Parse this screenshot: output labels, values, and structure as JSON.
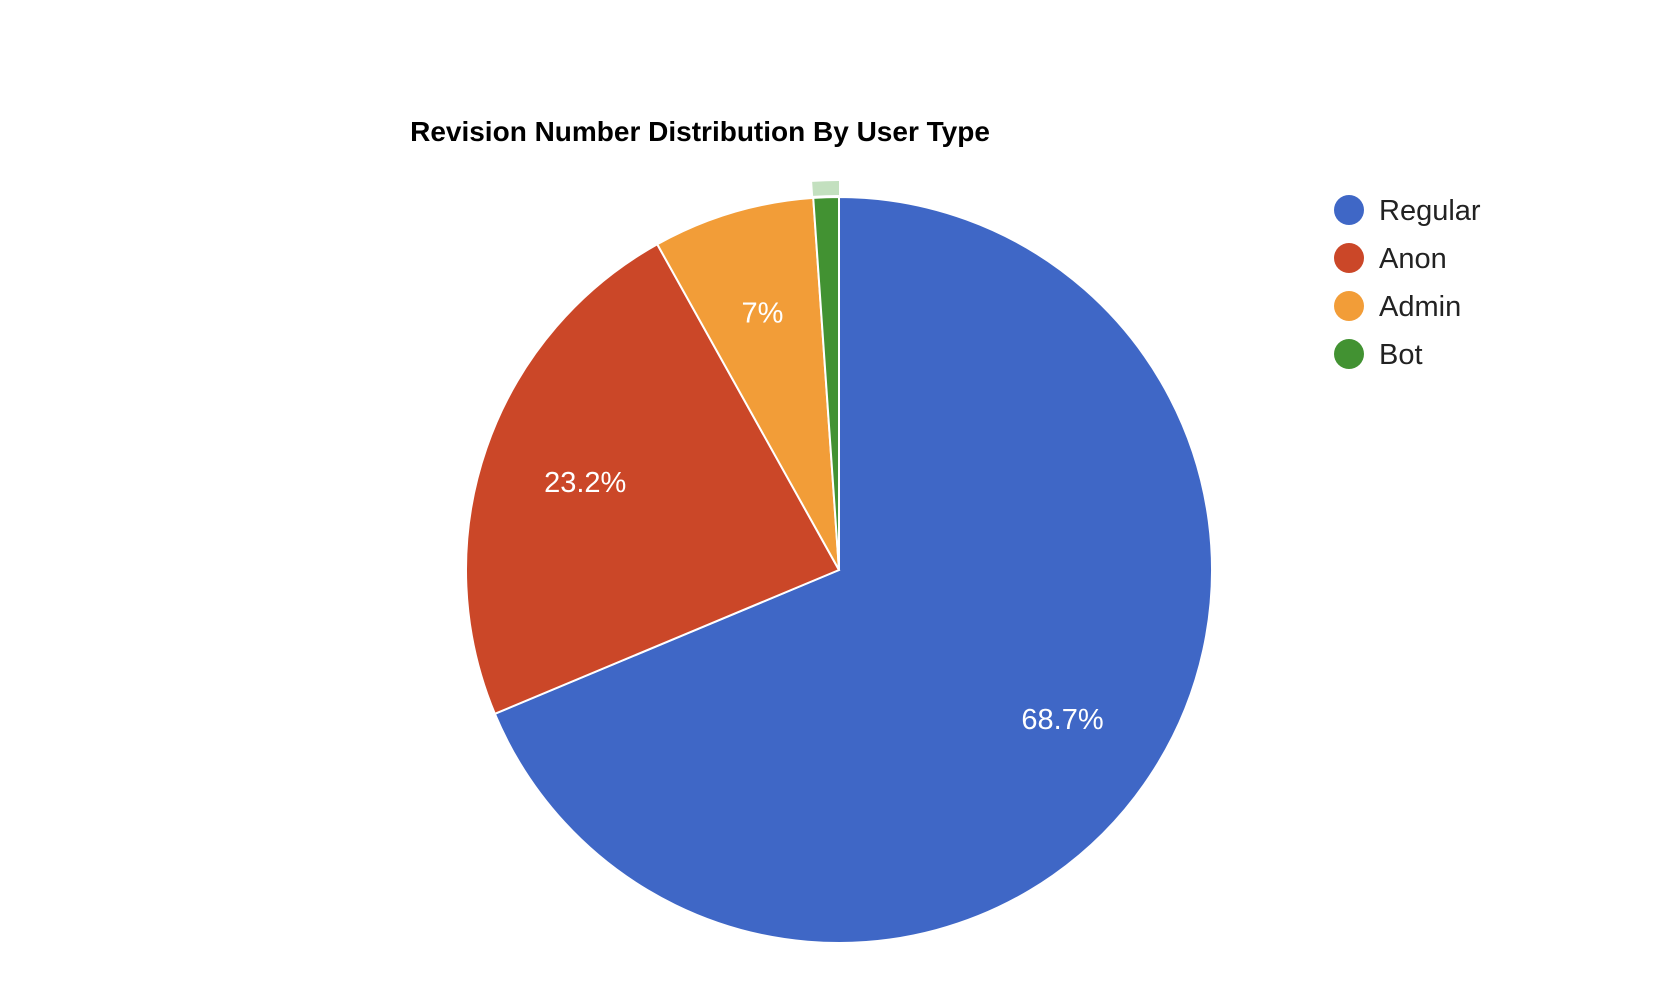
{
  "chart_data": {
    "type": "pie",
    "title": "Revision Number Distribution By User Type",
    "categories": [
      "Regular",
      "Anon",
      "Admin",
      "Bot"
    ],
    "values": [
      68.7,
      23.2,
      7.0,
      1.1
    ],
    "data_labels": [
      "68.7%",
      "23.2%",
      "7%",
      ""
    ],
    "colors": [
      "#3f67c6",
      "#cb4728",
      "#f29d38",
      "#429232"
    ],
    "highlight_color": "#c3e0bf",
    "slice_border_color": "#ffffff",
    "start_angle_deg": 0,
    "direction": "clockwise",
    "legend": {
      "position": "right"
    }
  }
}
